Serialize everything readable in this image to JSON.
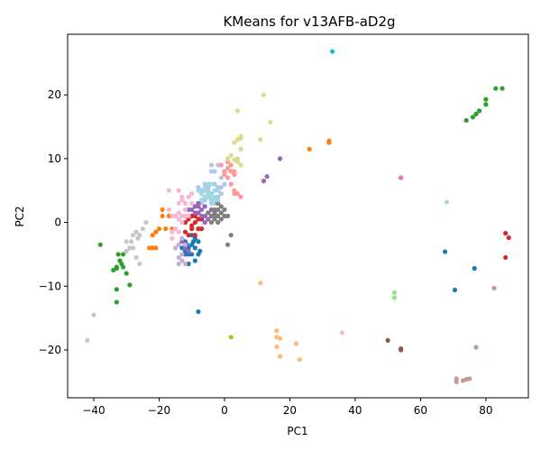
{
  "chart_data": {
    "type": "scatter",
    "title": "KMeans for v13AFB-aD2g",
    "xlabel": "PC1",
    "ylabel": "PC2",
    "xlim": [
      -48,
      93
    ],
    "ylim": [
      -27.5,
      29.5
    ],
    "xticks": [
      -40,
      -20,
      0,
      20,
      40,
      60,
      80
    ],
    "yticks": [
      -20,
      -10,
      0,
      10,
      20
    ],
    "grid": false,
    "legend": "none",
    "series": [
      {
        "color": "#1f77b4",
        "points": [
          [
            -12,
            -3
          ],
          [
            -11,
            -4
          ],
          [
            -10,
            -5
          ],
          [
            -9,
            -4
          ],
          [
            -8,
            -3
          ],
          [
            -10,
            -2
          ],
          [
            -11,
            -5
          ],
          [
            -9,
            -6
          ],
          [
            -12,
            -5
          ],
          [
            -13,
            -4
          ],
          [
            -8,
            -5
          ],
          [
            -10,
            -3.5
          ],
          [
            -11,
            -6.5
          ],
          [
            -12,
            -4.5
          ],
          [
            -9,
            -2.5
          ],
          [
            -7.5,
            -4.5
          ],
          [
            -9.5,
            -3
          ],
          [
            -11.5,
            -3.5
          ],
          [
            -8,
            -14
          ],
          [
            67.5,
            -4.6
          ],
          [
            70.5,
            -10.6
          ],
          [
            76.5,
            -7.2
          ]
        ]
      },
      {
        "color": "#aec7e8",
        "points": [
          [
            -6,
            6
          ],
          [
            -5,
            5
          ],
          [
            -4,
            4.5
          ],
          [
            -3,
            6
          ],
          [
            -2,
            5.5
          ],
          [
            -1,
            4.5
          ],
          [
            0,
            6
          ],
          [
            -4,
            3.5
          ],
          [
            -2,
            4
          ],
          [
            -3,
            8
          ],
          [
            -4,
            9
          ],
          [
            -2,
            9
          ],
          [
            -5,
            4
          ],
          [
            -6,
            3.5
          ],
          [
            -7,
            5
          ],
          [
            -8,
            5.5
          ],
          [
            -1,
            7
          ],
          [
            -3,
            3
          ],
          [
            -5,
            5.5
          ],
          [
            -7,
            3
          ],
          [
            -2,
            3
          ],
          [
            -4,
            8
          ],
          [
            -1,
            5.5
          ]
        ]
      },
      {
        "color": "#ff7f0e",
        "points": [
          [
            -19,
            1
          ],
          [
            -20,
            -1
          ],
          [
            -21,
            -4
          ],
          [
            -22,
            -4
          ],
          [
            -18,
            -1
          ],
          [
            -17,
            1
          ],
          [
            -22,
            -2
          ],
          [
            -23,
            -4
          ],
          [
            -19,
            2
          ],
          [
            -21,
            -1.5
          ],
          [
            26,
            11.5
          ],
          [
            32,
            12.8
          ],
          [
            32,
            12.5
          ],
          [
            -16,
            -1
          ]
        ]
      },
      {
        "color": "#ffbb78",
        "points": [
          [
            11,
            -9.5
          ],
          [
            16,
            -18
          ],
          [
            17,
            -18.2
          ],
          [
            16,
            -19.5
          ],
          [
            17,
            -21
          ],
          [
            16,
            -17
          ],
          [
            22,
            -19
          ],
          [
            23,
            -21.5
          ]
        ]
      },
      {
        "color": "#2ca02c",
        "points": [
          [
            -34,
            -7.5
          ],
          [
            -33,
            -7
          ],
          [
            -32,
            -6
          ],
          [
            -31,
            -5
          ],
          [
            -30,
            -8
          ],
          [
            -29,
            -9.8
          ],
          [
            -33,
            -12.5
          ],
          [
            -33,
            -10.5
          ],
          [
            -38,
            -3.5
          ],
          [
            -31,
            -7
          ],
          [
            -33,
            -7.2
          ],
          [
            -32.5,
            -5
          ],
          [
            74,
            16
          ],
          [
            76,
            16.5
          ],
          [
            77,
            17
          ],
          [
            78,
            17.5
          ],
          [
            80,
            18.5
          ],
          [
            80,
            19.3
          ],
          [
            83,
            21
          ],
          [
            85,
            21
          ],
          [
            -31.5,
            -6.5
          ]
        ]
      },
      {
        "color": "#98df8a",
        "points": [
          [
            52,
            -11
          ],
          [
            52,
            -11.8
          ]
        ]
      },
      {
        "color": "#d62728",
        "points": [
          [
            -10,
            -1
          ],
          [
            -9,
            0
          ],
          [
            -8,
            -1
          ],
          [
            -7,
            0.5
          ],
          [
            -11,
            -2
          ],
          [
            -12,
            0
          ],
          [
            -10,
            1
          ],
          [
            -9,
            -2
          ],
          [
            -8,
            0.5
          ],
          [
            -7,
            -1
          ],
          [
            -11,
            0.5
          ],
          [
            -12,
            -1.5
          ],
          [
            -10,
            -0.5
          ],
          [
            -8,
            1.5
          ],
          [
            -9,
            1
          ],
          [
            86,
            -1.7
          ],
          [
            87,
            -2.4
          ],
          [
            86,
            -5.5
          ]
        ]
      },
      {
        "color": "#ff9896",
        "points": [
          [
            -1,
            9
          ],
          [
            1,
            9.5
          ],
          [
            2,
            8
          ],
          [
            0,
            8
          ],
          [
            1,
            8.5
          ],
          [
            3,
            8
          ],
          [
            2,
            6
          ],
          [
            3,
            5
          ],
          [
            4,
            4.5
          ],
          [
            3,
            7.5
          ],
          [
            1,
            7
          ],
          [
            2,
            9
          ],
          [
            0,
            7.5
          ],
          [
            5,
            4
          ],
          [
            3,
            4.5
          ]
        ]
      },
      {
        "color": "#9467bd",
        "points": [
          [
            -10,
            2
          ],
          [
            -9,
            2.5
          ],
          [
            -8,
            1.5
          ],
          [
            -7,
            2
          ],
          [
            -6,
            1
          ],
          [
            -5,
            1.5
          ],
          [
            -4,
            2
          ],
          [
            -6,
            2.5
          ],
          [
            -8,
            2.5
          ],
          [
            -7,
            1
          ],
          [
            -9,
            1.5
          ],
          [
            -5,
            0.5
          ],
          [
            -4,
            1
          ],
          [
            -6,
            0
          ],
          [
            -3,
            1.5
          ],
          [
            -8,
            3
          ],
          [
            -11,
            2
          ],
          [
            12,
            6.5
          ],
          [
            13,
            7.2
          ],
          [
            17,
            10
          ],
          [
            -12,
            -4
          ],
          [
            -11,
            -4.5
          ],
          [
            -13,
            -3
          ],
          [
            54,
            7
          ]
        ]
      },
      {
        "color": "#c5b0d5",
        "points": [
          [
            -13,
            -6
          ],
          [
            -14,
            -5.5
          ],
          [
            -12,
            -6.5
          ],
          [
            -13,
            -5
          ],
          [
            -14,
            -3.5
          ],
          [
            -15,
            -4
          ],
          [
            -13,
            -2.5
          ],
          [
            -12,
            -3.5
          ],
          [
            -14,
            -6.5
          ]
        ]
      },
      {
        "color": "#8c564b",
        "points": [
          [
            50,
            -18.5
          ],
          [
            54,
            -19.8
          ],
          [
            54,
            -20
          ]
        ]
      },
      {
        "color": "#c49c94",
        "points": [
          [
            71,
            -24.5
          ],
          [
            73,
            -24.8
          ],
          [
            74,
            -24.6
          ],
          [
            75,
            -24.5
          ],
          [
            71,
            -25
          ],
          [
            77,
            -19.6
          ],
          [
            82.5,
            -10.3
          ]
        ]
      },
      {
        "color": "#e377c2",
        "points": [
          [
            54,
            7
          ]
        ]
      },
      {
        "color": "#f7b6d2",
        "points": [
          [
            -14,
            3
          ],
          [
            -13,
            3.5
          ],
          [
            -12,
            2
          ],
          [
            -11,
            4
          ],
          [
            -10,
            4.5
          ],
          [
            -12,
            3
          ],
          [
            -13,
            1
          ],
          [
            -11,
            1
          ],
          [
            -16,
            1
          ],
          [
            -17,
            2
          ],
          [
            -14,
            1.5
          ],
          [
            -15,
            1
          ],
          [
            -17,
            5
          ],
          [
            -14,
            5
          ],
          [
            -10,
            3
          ],
          [
            -12,
            1
          ],
          [
            -13,
            0
          ],
          [
            -16,
            -2.5
          ],
          [
            -15,
            -1
          ],
          [
            -14,
            -1.5
          ],
          [
            -14,
            0.5
          ],
          [
            -13,
            4
          ],
          [
            -16,
            -1.5
          ],
          [
            36,
            -17.3
          ]
        ]
      },
      {
        "color": "#7f7f7f",
        "points": [
          [
            -4,
            1
          ],
          [
            -3,
            2
          ],
          [
            -2,
            3
          ],
          [
            -1,
            2.5
          ],
          [
            0,
            1
          ],
          [
            -2,
            1
          ],
          [
            -3,
            0.5
          ],
          [
            -5,
            1.5
          ],
          [
            -1,
            0.5
          ],
          [
            0,
            2
          ],
          [
            -2,
            0
          ],
          [
            -3,
            1
          ],
          [
            -4,
            0
          ],
          [
            1,
            1
          ],
          [
            1,
            -3.5
          ],
          [
            2,
            -2
          ],
          [
            -1,
            1.5
          ],
          [
            -3,
            1.5
          ],
          [
            -2,
            2
          ]
        ]
      },
      {
        "color": "#c7c7c7",
        "points": [
          [
            -26,
            -2
          ],
          [
            -27,
            -1.5
          ],
          [
            -28,
            -2
          ],
          [
            -29,
            -4
          ],
          [
            -30,
            -3
          ],
          [
            -28,
            -4
          ],
          [
            -27,
            -5.5
          ],
          [
            -25,
            -1
          ],
          [
            -24,
            0
          ],
          [
            -26,
            -6.5
          ],
          [
            -30,
            -4.5
          ],
          [
            -28.5,
            -3
          ],
          [
            -26.5,
            -2.5
          ],
          [
            -40,
            -14.5
          ],
          [
            -42,
            -18.5
          ]
        ]
      },
      {
        "color": "#bcbd22",
        "points": [
          [
            2,
            -18
          ]
        ]
      },
      {
        "color": "#dbdb8d",
        "points": [
          [
            4,
            13
          ],
          [
            5,
            13.2
          ],
          [
            5,
            13.5
          ],
          [
            4,
            17.5
          ],
          [
            12,
            20
          ],
          [
            14,
            15.7
          ],
          [
            11,
            13
          ],
          [
            3,
            12.5
          ],
          [
            2,
            10.5
          ],
          [
            4,
            10
          ],
          [
            5,
            9
          ],
          [
            3,
            9.8
          ],
          [
            1,
            10
          ],
          [
            5,
            11.5
          ],
          [
            4,
            9.5
          ]
        ]
      },
      {
        "color": "#17becf",
        "points": [
          [
            33,
            26.8
          ]
        ]
      },
      {
        "color": "#9edae5",
        "points": [
          [
            -3,
            5
          ],
          [
            -4,
            6
          ],
          [
            -5,
            4
          ],
          [
            -6,
            5
          ],
          [
            -3,
            4
          ],
          [
            -4,
            3
          ],
          [
            -2,
            5
          ],
          [
            -5,
            6
          ],
          [
            -6,
            4
          ],
          [
            -7,
            3.5
          ],
          [
            -4,
            4
          ],
          [
            -3,
            3.5
          ],
          [
            -8,
            5
          ],
          [
            68,
            3.2
          ],
          [
            -5,
            4.5
          ],
          [
            -2,
            3.5
          ],
          [
            -6,
            5.5
          ],
          [
            -7,
            4.5
          ]
        ]
      }
    ]
  }
}
